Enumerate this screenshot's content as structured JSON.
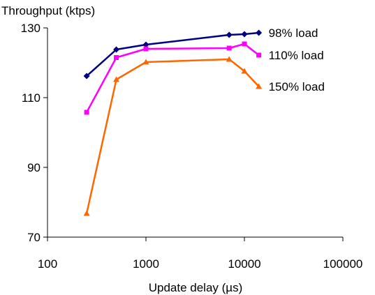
{
  "chart_data": {
    "type": "line",
    "title": "",
    "ylabel": "Throughput (ktps)",
    "xlabel": "Update delay (µs)",
    "x_scale": "log",
    "xlim": [
      100,
      100000
    ],
    "ylim": [
      70,
      130
    ],
    "x_ticks": [
      "100",
      "1000",
      "10000",
      "100000"
    ],
    "y_ticks": [
      "70",
      "90",
      "110",
      "130"
    ],
    "grid": false,
    "legend": "inline labels at right end of each series",
    "series": [
      {
        "name": "98% load",
        "color": "#000080",
        "marker": "diamond",
        "x": [
          250,
          500,
          1000,
          7000,
          10000,
          14000
        ],
        "y": [
          116.2,
          123.8,
          125.2,
          128.0,
          128.2,
          128.6
        ]
      },
      {
        "name": "110% load",
        "color": "#ff00ff",
        "marker": "square",
        "x": [
          250,
          500,
          1000,
          7000,
          10000,
          14000
        ],
        "y": [
          105.8,
          121.5,
          124.0,
          124.2,
          125.4,
          122.2
        ]
      },
      {
        "name": "150% load",
        "color": "#ff6600",
        "marker": "triangle",
        "x": [
          250,
          500,
          1000,
          7000,
          10000,
          14000
        ],
        "y": [
          76.8,
          115.2,
          120.2,
          121.0,
          117.6,
          113.2
        ]
      }
    ]
  }
}
